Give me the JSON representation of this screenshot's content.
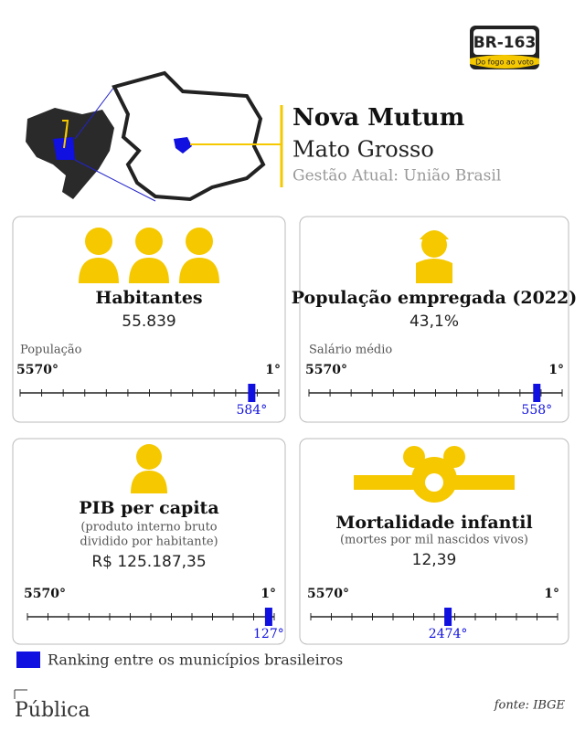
{
  "header": {
    "logo": {
      "title": "BR-163",
      "subtitle": "Do fogo ao voto"
    },
    "city": "Nova Mutum",
    "state": "Mato Grosso",
    "management": "Gestão Atual: União Brasil"
  },
  "scale": {
    "from": {
      "value": 5570,
      "label": "5570°"
    },
    "to": {
      "value": 1,
      "label": "1°"
    }
  },
  "cards": [
    {
      "title": "Habitantes",
      "value": "55.839",
      "scale_label": "População",
      "rank": 584,
      "rank_label": "584°"
    },
    {
      "title": "População empregada (2022)",
      "value": "43,1%",
      "scale_label": "Salário médio",
      "rank": 558,
      "rank_label": "558°"
    },
    {
      "title": "PIB per capita",
      "note": [
        "(produto interno bruto",
        "dividido por habitante)"
      ],
      "value": "R$ 125.187,35",
      "rank": 127,
      "rank_label": "127°"
    },
    {
      "title": "Mortalidade infantil",
      "note": [
        "(mortes por mil nascidos vivos)"
      ],
      "value": "12,39",
      "rank": 2474,
      "rank_label": "2474°"
    }
  ],
  "legend": "Ranking entre os municípios brasileiros",
  "footer": {
    "brand": "Pública",
    "source": "fonte: IBGE"
  }
}
